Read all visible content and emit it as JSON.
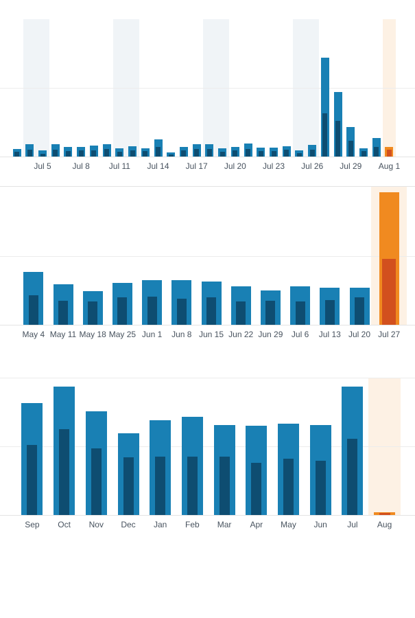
{
  "colors": {
    "bar_blue": "#1980b4",
    "bar_dark_blue": "#0e4d71",
    "bar_orange": "#f08a20",
    "bar_dark_orange": "#d2501e",
    "weekend_band": "#f0f4f7",
    "current_period_band": "#fdf1e4",
    "gridline": "#ececec",
    "axis_line": "#e3e3e3",
    "label_text": "#47525e",
    "background": "#ffffff"
  },
  "chart_data": [
    {
      "id": "daily",
      "type": "bar",
      "title": "Daily activity (stacked total vs. highlighted portion), unlabeled y-axis in arbitrary units (gridline = 100)",
      "x": [
        "Jul 3",
        "Jul 4",
        "Jul 5",
        "Jul 6",
        "Jul 7",
        "Jul 8",
        "Jul 9",
        "Jul 10",
        "Jul 11",
        "Jul 12",
        "Jul 13",
        "Jul 14",
        "Jul 15",
        "Jul 16",
        "Jul 17",
        "Jul 18",
        "Jul 19",
        "Jul 20",
        "Jul 21",
        "Jul 22",
        "Jul 23",
        "Jul 24",
        "Jul 25",
        "Jul 26",
        "Jul 27",
        "Jul 28",
        "Jul 29",
        "Jul 30",
        "Jul 31",
        "Aug 1"
      ],
      "series": [
        {
          "name": "total",
          "values": [
            11,
            18,
            9,
            18,
            14,
            14,
            16,
            18,
            12,
            15,
            12,
            25,
            6,
            14,
            18,
            18,
            12,
            14,
            19,
            13,
            13,
            15,
            9,
            17,
            144,
            94,
            43,
            12,
            27,
            14
          ]
        },
        {
          "name": "dark-portion",
          "values": [
            7,
            10,
            4,
            10,
            8,
            9,
            9,
            11,
            7,
            9,
            8,
            14,
            3,
            9,
            11,
            11,
            7,
            9,
            11,
            8,
            8,
            10,
            5,
            10,
            63,
            52,
            23,
            8,
            14,
            10
          ]
        }
      ],
      "tick_indices": [
        2,
        5,
        8,
        11,
        14,
        17,
        20,
        23,
        26,
        29
      ],
      "tick_labels": [
        "Jul 5",
        "Jul 8",
        "Jul 11",
        "Jul 14",
        "Jul 17",
        "Jul 20",
        "Jul 23",
        "Jul 26",
        "Jul 29",
        "Aug 1"
      ],
      "weekend_groups": [
        [
          1,
          2
        ],
        [
          8,
          9
        ],
        [
          15,
          16
        ],
        [
          22,
          23
        ]
      ],
      "highlight_index": 29,
      "ylim": [
        0,
        200
      ],
      "gridline_values": [
        100
      ],
      "legend": "none"
    },
    {
      "id": "weekly",
      "type": "bar",
      "title": "Weekly activity (stacked total vs. highlighted portion), unlabeled y-axis in arbitrary units (gridline = 100)",
      "x": [
        "May 4",
        "May 11",
        "May 18",
        "May 25",
        "Jun 1",
        "Jun 8",
        "Jun 15",
        "Jun 22",
        "Jun 29",
        "Jul 6",
        "Jul 13",
        "Jul 20",
        "Jul 27"
      ],
      "series": [
        {
          "name": "total",
          "values": [
            77,
            59,
            49,
            61,
            65,
            65,
            63,
            56,
            50,
            56,
            54,
            54,
            193
          ]
        },
        {
          "name": "dark-portion",
          "values": [
            43,
            35,
            34,
            40,
            41,
            38,
            40,
            34,
            35,
            34,
            36,
            40,
            96
          ]
        }
      ],
      "tick_labels": [
        "May 4",
        "May 11",
        "May 18",
        "May 25",
        "Jun 1",
        "Jun 8",
        "Jun 15",
        "Jun 22",
        "Jun 29",
        "Jul 6",
        "Jul 13",
        "Jul 20",
        "Jul 27"
      ],
      "highlight_index": 12,
      "ylim": [
        0,
        200
      ],
      "gridline_values": [
        100
      ],
      "legend": "none"
    },
    {
      "id": "monthly",
      "type": "bar",
      "title": "Monthly activity (stacked total vs. highlighted portion), unlabeled y-axis in arbitrary units (gridline = 100)",
      "x": [
        "Sep",
        "Oct",
        "Nov",
        "Dec",
        "Jan",
        "Feb",
        "Mar",
        "Apr",
        "May",
        "Jun",
        "Jul",
        "Aug"
      ],
      "series": [
        {
          "name": "total",
          "values": [
            163,
            187,
            151,
            119,
            138,
            143,
            131,
            130,
            133,
            131,
            187,
            4
          ]
        },
        {
          "name": "dark-portion",
          "values": [
            102,
            125,
            97,
            84,
            85,
            85,
            85,
            76,
            82,
            79,
            111,
            3
          ]
        }
      ],
      "tick_labels": [
        "Sep",
        "Oct",
        "Nov",
        "Dec",
        "Jan",
        "Feb",
        "Mar",
        "Apr",
        "May",
        "Jun",
        "Jul",
        "Aug"
      ],
      "highlight_index": 11,
      "ylim": [
        0,
        200
      ],
      "gridline_values": [
        100,
        200
      ],
      "legend": "none"
    }
  ]
}
